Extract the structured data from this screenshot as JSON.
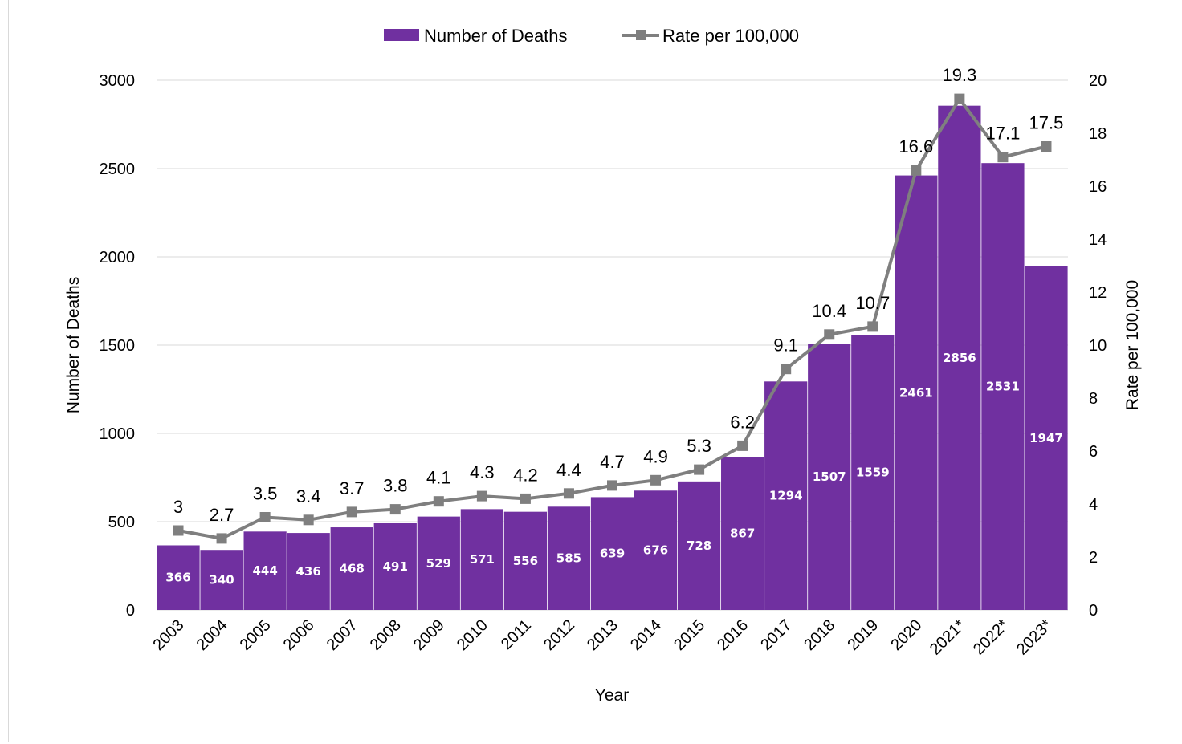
{
  "chart_data": {
    "type": "bar",
    "categories": [
      "2003",
      "2004",
      "2005",
      "2006",
      "2007",
      "2008",
      "2009",
      "2010",
      "2011",
      "2012",
      "2013",
      "2014",
      "2015",
      "2016",
      "2017",
      "2018",
      "2019",
      "2020",
      "2021*",
      "2022*",
      "2023*"
    ],
    "series": [
      {
        "name": "Number of Deaths",
        "type": "bar",
        "axis": "left",
        "color": "#7030a0",
        "values": [
          366,
          340,
          444,
          436,
          468,
          491,
          529,
          571,
          556,
          585,
          639,
          676,
          728,
          867,
          1294,
          1507,
          1559,
          2461,
          2856,
          2531,
          1947
        ]
      },
      {
        "name": "Rate per 100,000",
        "type": "line",
        "axis": "right",
        "color": "#7f7f7f",
        "marker": "square",
        "values": [
          3,
          2.7,
          3.5,
          3.4,
          3.7,
          3.8,
          4.1,
          4.3,
          4.2,
          4.4,
          4.7,
          4.9,
          5.3,
          6.2,
          9.1,
          10.4,
          10.7,
          16.6,
          19.3,
          17.1,
          17.5
        ]
      }
    ],
    "xlabel": "Year",
    "ylabel": "Number of Deaths",
    "y2label": "Rate per 100,000",
    "ylim": [
      0,
      3000
    ],
    "y_ticks": [
      0,
      500,
      1000,
      1500,
      2000,
      2500,
      3000
    ],
    "y2lim": [
      0,
      20
    ],
    "y2_ticks": [
      0,
      2,
      4,
      6,
      8,
      10,
      12,
      14,
      16,
      18,
      20
    ],
    "grid": true,
    "legend_position": "top"
  }
}
